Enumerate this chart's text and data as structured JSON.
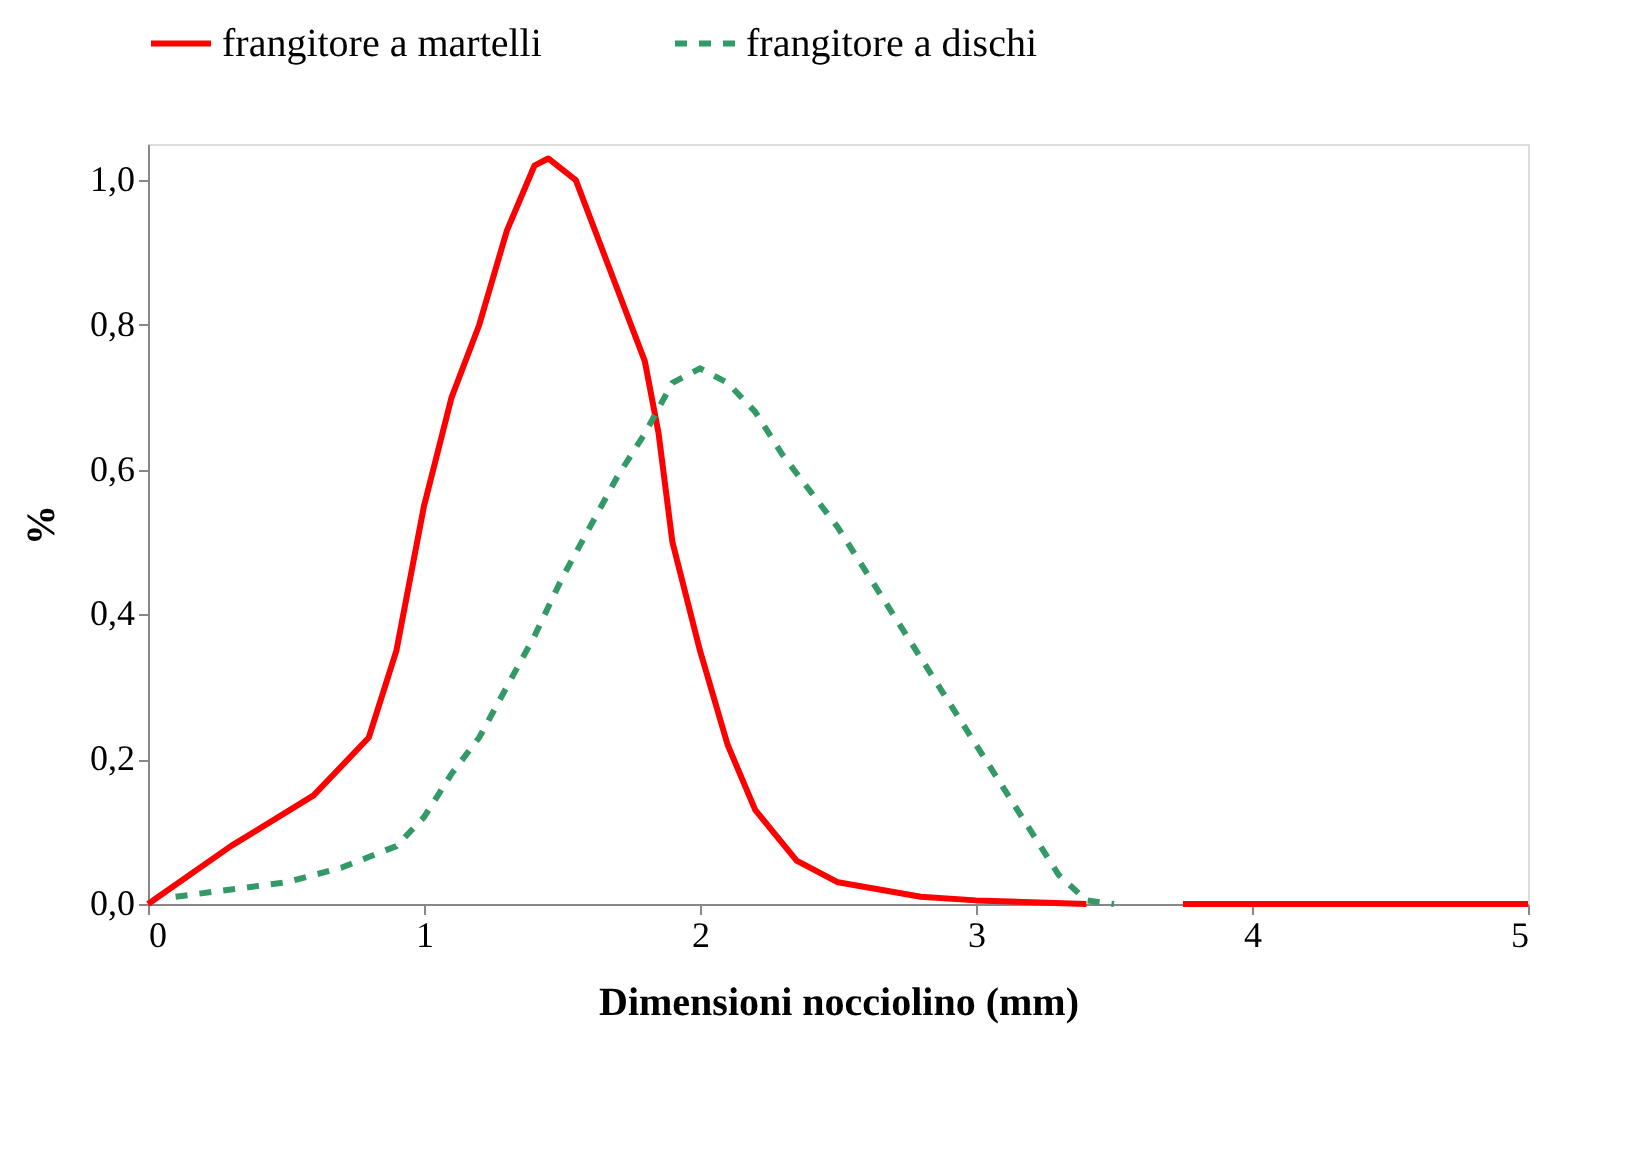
{
  "chart_data": {
    "type": "line",
    "xlabel": "Dimensioni nocciolino (mm)",
    "ylabel": "%",
    "xlim": [
      0,
      5
    ],
    "xticks": [
      0,
      1,
      2,
      3,
      4,
      5
    ],
    "ylim": [
      0,
      1.05
    ],
    "yticks": [
      {
        "value": 0,
        "label": "0,0"
      },
      {
        "value": 0.2,
        "label": "0,2"
      },
      {
        "value": 0.4,
        "label": "0,4"
      },
      {
        "value": 0.6,
        "label": "0,6"
      },
      {
        "value": 0.8,
        "label": "0,8"
      },
      {
        "value": 1.0,
        "label": "1,0"
      }
    ],
    "grid": false,
    "legend": "top",
    "marker": "none",
    "series": [
      {
        "name": "frangitore a martelli",
        "color": "#ff0000",
        "line_style": "solid",
        "x": [
          0,
          0.3,
          0.6,
          0.8,
          0.9,
          1.0,
          1.1,
          1.2,
          1.3,
          1.4,
          1.45,
          1.55,
          1.7,
          1.8,
          1.85,
          1.9,
          2.0,
          2.1,
          2.2,
          2.35,
          2.5,
          2.8,
          3.0,
          3.4,
          3.6,
          3.75,
          4.0,
          4.5,
          5.0
        ],
        "values": [
          0,
          0.08,
          0.15,
          0.23,
          0.35,
          0.55,
          0.7,
          0.8,
          0.93,
          1.02,
          1.03,
          1.0,
          0.85,
          0.75,
          0.65,
          0.5,
          0.35,
          0.22,
          0.13,
          0.06,
          0.03,
          0.01,
          0.005,
          0,
          null,
          0,
          0,
          0,
          0
        ]
      },
      {
        "name": "frangitore a dischi",
        "color": "#339966",
        "line_style": "dashed",
        "x": [
          0.1,
          0.3,
          0.5,
          0.7,
          0.9,
          1.0,
          1.1,
          1.2,
          1.3,
          1.4,
          1.5,
          1.6,
          1.7,
          1.8,
          1.9,
          2.0,
          2.1,
          2.2,
          2.3,
          2.5,
          2.7,
          2.9,
          3.1,
          3.3,
          3.4,
          3.5
        ],
        "values": [
          0.01,
          0.02,
          0.03,
          0.05,
          0.08,
          0.12,
          0.18,
          0.23,
          0.3,
          0.37,
          0.45,
          0.52,
          0.59,
          0.65,
          0.72,
          0.74,
          0.72,
          0.68,
          0.62,
          0.52,
          0.4,
          0.28,
          0.16,
          0.04,
          0.005,
          0
        ]
      }
    ]
  }
}
